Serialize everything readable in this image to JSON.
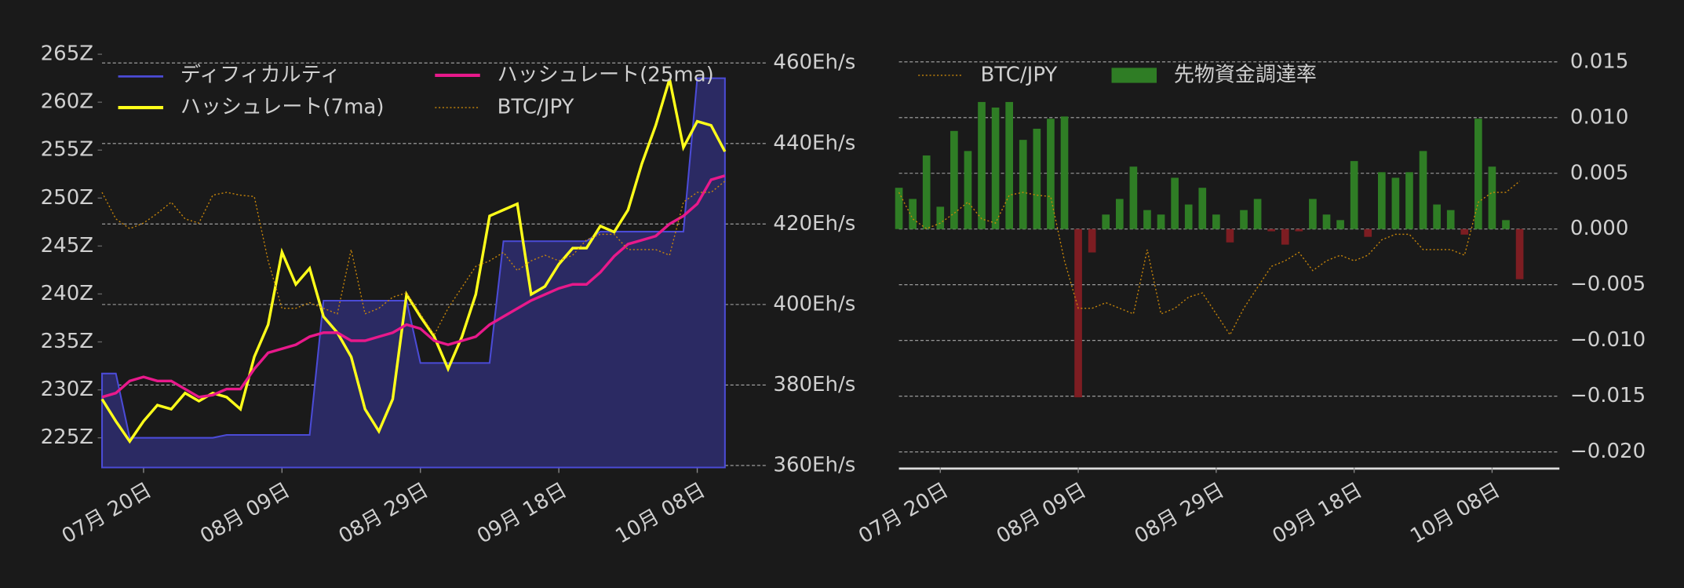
{
  "chart_data": [
    {
      "type": "line",
      "categories": [
        null,
        null,
        null,
        "07月 20日",
        null,
        null,
        null,
        null,
        null,
        null,
        null,
        null,
        null,
        "08月 09日",
        null,
        null,
        null,
        null,
        null,
        null,
        null,
        null,
        null,
        "08月 29日",
        null,
        null,
        null,
        null,
        null,
        null,
        null,
        null,
        null,
        "09月 18日",
        null,
        null,
        null,
        null,
        null,
        null,
        null,
        null,
        null,
        "10月 08日",
        null,
        null
      ],
      "series": [
        {
          "name": "ディフィカルティ",
          "color": "#4b4bd6",
          "fill": "#2b2a63",
          "style": "area",
          "axis": "y",
          "values": [
            231.7,
            231.7,
            225,
            225,
            225,
            225,
            225,
            225,
            225,
            225.3,
            225.3,
            225.3,
            225.3,
            225.3,
            225.3,
            225.3,
            239.3,
            239.3,
            239.3,
            239.3,
            239.3,
            239.3,
            239.3,
            232.8,
            232.8,
            232.8,
            232.8,
            232.8,
            232.8,
            245.5,
            245.5,
            245.5,
            245.5,
            245.5,
            245.5,
            245.5,
            246.5,
            246.5,
            246.5,
            246.5,
            246.5,
            246.5,
            246.5,
            262.5,
            262.5,
            262.5
          ]
        },
        {
          "name": "ハッシュレート(7ma)",
          "color": "#ffff1a",
          "style": "line",
          "axis": "y2",
          "values": [
            376.5,
            371,
            366,
            371,
            375,
            374,
            378,
            376,
            378,
            377,
            374,
            387,
            395,
            413,
            405,
            409,
            397,
            393,
            387,
            374,
            368.5,
            376.5,
            402.5,
            397,
            392,
            384,
            392,
            402.5,
            422,
            423.5,
            425,
            402.5,
            404.5,
            410,
            414,
            414,
            419.5,
            418,
            423.5,
            435,
            444.5,
            456,
            439,
            445.5,
            444.5,
            438
          ]
        },
        {
          "name": "ハッシュレート(25ma)",
          "color": "#e8198b",
          "style": "line",
          "axis": "y2",
          "values": [
            377,
            378,
            381,
            382,
            381,
            381,
            379,
            377,
            377.5,
            379,
            379,
            384,
            388,
            389,
            390,
            392,
            393,
            393,
            391,
            391,
            392,
            393,
            395,
            394,
            391,
            390,
            391,
            392,
            395,
            397,
            399,
            401,
            402.5,
            404,
            405,
            405,
            408,
            412,
            415,
            416,
            417,
            420,
            422,
            425,
            431,
            432
          ]
        },
        {
          "name": "BTC/JPY",
          "color": "#c8860a",
          "style": "dotted",
          "axis": "y3",
          "values": [
            1747,
            1728,
            1721,
            1725,
            1732,
            1740,
            1728,
            1725,
            1745,
            1747,
            1745,
            1744,
            1698,
            1664,
            1664,
            1668,
            1664,
            1660,
            1706,
            1660,
            1664,
            1672,
            1675,
            1660,
            1645,
            1664,
            1679,
            1694,
            1698,
            1704,
            1691,
            1698,
            1702,
            1698,
            1702,
            1713,
            1717,
            1717,
            1706,
            1706,
            1706,
            1702,
            1740,
            1747,
            1747,
            1755
          ]
        }
      ],
      "ylim": [
        221.9,
        265.6
      ],
      "yticks": [
        {
          "value": 225,
          "label": "225Z"
        },
        {
          "value": 230,
          "label": "230Z"
        },
        {
          "value": 235,
          "label": "235Z"
        },
        {
          "value": 240,
          "label": "240Z"
        },
        {
          "value": 245,
          "label": "245Z"
        },
        {
          "value": 250,
          "label": "250Z"
        },
        {
          "value": 255,
          "label": "255Z"
        },
        {
          "value": 260,
          "label": "260Z"
        },
        {
          "value": 265,
          "label": "265Z"
        }
      ],
      "y2lim": [
        359.5,
        463.6
      ],
      "y2ticks": [
        {
          "value": 360,
          "label": "360Eh/s"
        },
        {
          "value": 380,
          "label": "380Eh/s"
        },
        {
          "value": 400,
          "label": "400Eh/s"
        },
        {
          "value": 420,
          "label": "420Eh/s"
        },
        {
          "value": 440,
          "label": "440Eh/s"
        },
        {
          "value": 460,
          "label": "460Eh/s"
        }
      ],
      "y3lim": [
        1550,
        1850
      ],
      "grid": true
    },
    {
      "type": "bar",
      "categories": [
        null,
        null,
        null,
        "07月 20日",
        null,
        null,
        null,
        null,
        null,
        null,
        null,
        null,
        null,
        "08月 09日",
        null,
        null,
        null,
        null,
        null,
        null,
        null,
        null,
        null,
        "08月 29日",
        null,
        null,
        null,
        null,
        null,
        null,
        null,
        null,
        null,
        "09月 18日",
        null,
        null,
        null,
        null,
        null,
        null,
        null,
        null,
        null,
        "10月 08日",
        null,
        null
      ],
      "series": [
        {
          "name": "BTC/JPY",
          "color": "#c8860a",
          "style": "dotted",
          "axis": "y3",
          "values": [
            1747,
            1728,
            1721,
            1725,
            1732,
            1740,
            1728,
            1725,
            1745,
            1747,
            1745,
            1744,
            1698,
            1664,
            1664,
            1668,
            1664,
            1660,
            1706,
            1660,
            1664,
            1672,
            1675,
            1660,
            1645,
            1664,
            1679,
            1694,
            1698,
            1704,
            1691,
            1698,
            1702,
            1698,
            1702,
            1713,
            1717,
            1717,
            1706,
            1706,
            1706,
            1702,
            1740,
            1747,
            1747,
            1755
          ]
        },
        {
          "name": "先物資金調達率",
          "color": "#2f7d25",
          "negative_color": "#7d1d22",
          "style": "bar",
          "axis": "y",
          "values": [
            0.0037,
            0.0027,
            0.0066,
            0.002,
            0.0088,
            0.007,
            0.0114,
            0.0109,
            0.0114,
            0.008,
            0.009,
            0.0099,
            0.0101,
            -0.0151,
            -0.0021,
            0.0013,
            0.0027,
            0.0056,
            0.0017,
            0.0013,
            0.0046,
            0.0022,
            0.0037,
            0.0013,
            -0.0012,
            0.0017,
            0.0027,
            -0.0002,
            -0.0014,
            -0.0002,
            0.0027,
            0.0013,
            0.0008,
            0.0061,
            -0.0007,
            0.0051,
            0.0046,
            0.0051,
            0.007,
            0.0022,
            0.0017,
            -0.0005,
            0.0099,
            0.0056,
            0.0008,
            -0.0045
          ]
        }
      ],
      "ylim": [
        -0.0214,
        0.0162
      ],
      "yticks": [
        {
          "value": 0.015,
          "label": "0.015"
        },
        {
          "value": 0.01,
          "label": "0.010"
        },
        {
          "value": 0.005,
          "label": "0.005"
        },
        {
          "value": 0,
          "label": "0.000"
        },
        {
          "value": -0.005,
          "label": "−0.005"
        },
        {
          "value": -0.01,
          "label": "−0.010"
        },
        {
          "value": -0.015,
          "label": "−0.015"
        },
        {
          "value": -0.02,
          "label": "−0.020"
        }
      ],
      "y3lim": [
        1550,
        1850
      ],
      "grid": true
    }
  ]
}
